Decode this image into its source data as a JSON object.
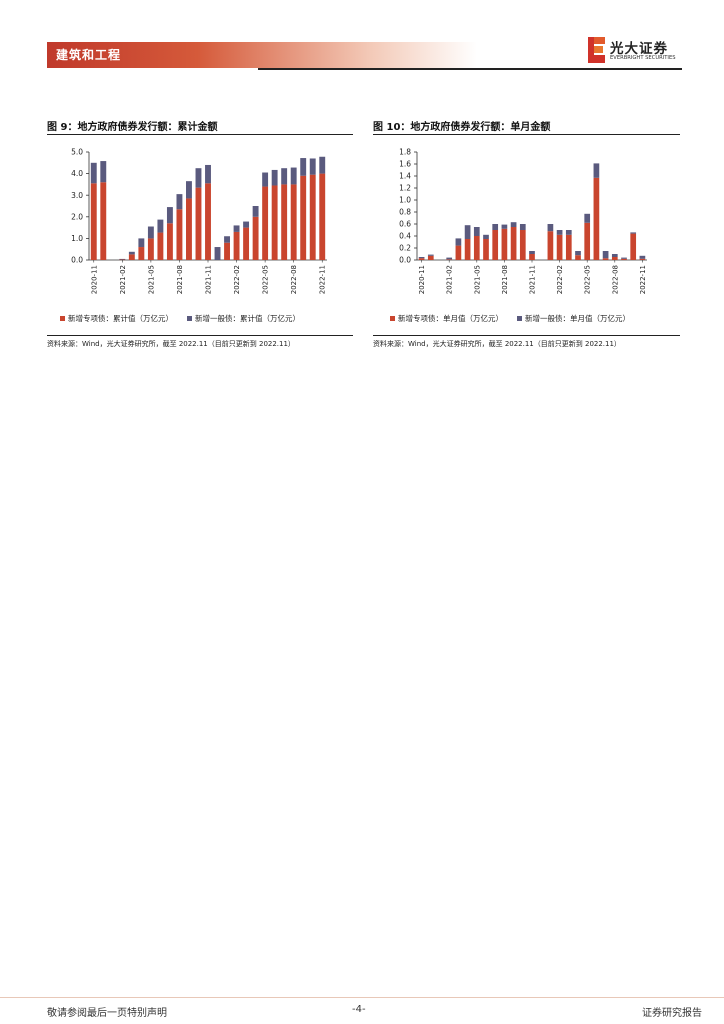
{
  "header": {
    "section": "建筑和工程",
    "brand_cn": "光大证券",
    "brand_en": "EVERBRIGHT SECURITIES"
  },
  "colors": {
    "special_bond": "#c9452e",
    "general_bond": "#5a5a7e",
    "accent": "#c0392b"
  },
  "figures": [
    {
      "title": "图 9：地方政府债券发行额：累计金额",
      "legend": [
        "新增专项债：累计值（万亿元）",
        "新增一般债：累计值（万亿元）"
      ],
      "source": "资料来源：Wind，光大证券研究所，截至 2022.11（目前只更新到 2022.11）"
    },
    {
      "title": "图 10：地方政府债券发行额：单月金额",
      "legend": [
        "新增专项债：单月值（万亿元）",
        "新增一般债：单月值（万亿元）"
      ],
      "source": "资料来源：Wind，光大证券研究所，截至 2022.11（目前只更新到 2022.11）"
    }
  ],
  "chart_data": [
    {
      "type": "bar",
      "stacked": true,
      "title": "图 9：地方政府债券发行额：累计金额",
      "ylim": [
        0,
        5
      ],
      "yticks": [
        "0.0",
        "1.0",
        "2.0",
        "3.0",
        "4.0",
        "5.0"
      ],
      "ytick_values": [
        0,
        1,
        2,
        3,
        4,
        5
      ],
      "categories": [
        "2020-11",
        "2020-12",
        "2021-01",
        "2021-02",
        "2021-03",
        "2021-04",
        "2021-05",
        "2021-06",
        "2021-07",
        "2021-08",
        "2021-09",
        "2021-10",
        "2021-11",
        "2021-12",
        "2022-01",
        "2022-02",
        "2022-03",
        "2022-04",
        "2022-05",
        "2022-06",
        "2022-07",
        "2022-08",
        "2022-09",
        "2022-10",
        "2022-11"
      ],
      "xtick_labels": [
        "2020-11",
        "2021-02",
        "2021-05",
        "2021-08",
        "2021-11",
        "2022-02",
        "2022-05",
        "2022-08",
        "2022-11"
      ],
      "xtick_indices": [
        0,
        3,
        6,
        9,
        12,
        15,
        18,
        21,
        24
      ],
      "series": [
        {
          "name": "新增专项债：累计值（万亿元）",
          "color": "#c9452e",
          "values": [
            3.55,
            3.6,
            0,
            0.02,
            0.26,
            0.6,
            1.0,
            1.27,
            1.7,
            2.35,
            2.85,
            3.35,
            3.55,
            0,
            0.8,
            1.3,
            1.5,
            2.0,
            3.4,
            3.45,
            3.5,
            3.5,
            3.9,
            3.95,
            4.0
          ]
        },
        {
          "name": "新增一般债：累计值（万亿元）",
          "color": "#5a5a7e",
          "values": [
            0.95,
            0.98,
            0,
            0.03,
            0.12,
            0.4,
            0.55,
            0.6,
            0.75,
            0.7,
            0.8,
            0.9,
            0.85,
            0.6,
            0.3,
            0.3,
            0.28,
            0.5,
            0.65,
            0.72,
            0.75,
            0.78,
            0.82,
            0.75,
            0.78
          ]
        }
      ]
    },
    {
      "type": "bar",
      "stacked": true,
      "title": "图 10：地方政府债券发行额：单月金额",
      "ylim": [
        0,
        1.8
      ],
      "yticks": [
        "0.0",
        "0.2",
        "0.4",
        "0.6",
        "0.8",
        "1.0",
        "1.2",
        "1.4",
        "1.6",
        "1.8"
      ],
      "ytick_values": [
        0,
        0.2,
        0.4,
        0.6,
        0.8,
        1.0,
        1.2,
        1.4,
        1.6,
        1.8
      ],
      "categories": [
        "2020-11",
        "2020-12",
        "2021-01",
        "2021-02",
        "2021-03",
        "2021-04",
        "2021-05",
        "2021-06",
        "2021-07",
        "2021-08",
        "2021-09",
        "2021-10",
        "2021-11",
        "2021-12",
        "2022-01",
        "2022-02",
        "2022-03",
        "2022-04",
        "2022-05",
        "2022-06",
        "2022-07",
        "2022-08",
        "2022-09",
        "2022-10",
        "2022-11"
      ],
      "xtick_labels": [
        "2020-11",
        "2021-02",
        "2021-05",
        "2021-08",
        "2021-11",
        "2022-02",
        "2022-05",
        "2022-08",
        "2022-11"
      ],
      "xtick_indices": [
        0,
        3,
        6,
        9,
        12,
        15,
        18,
        21,
        24
      ],
      "series": [
        {
          "name": "新增专项债：单月值（万亿元）",
          "color": "#c9452e",
          "values": [
            0.03,
            0.07,
            0,
            0.01,
            0.24,
            0.35,
            0.4,
            0.35,
            0.5,
            0.52,
            0.55,
            0.5,
            0.1,
            0,
            0.48,
            0.42,
            0.42,
            0.08,
            0.62,
            1.37,
            0.03,
            0.05,
            0.02,
            0.44,
            0.02
          ]
        },
        {
          "name": "新增一般债：单月值（万亿元）",
          "color": "#5a5a7e",
          "values": [
            0.02,
            0.02,
            0,
            0.03,
            0.12,
            0.23,
            0.15,
            0.07,
            0.1,
            0.07,
            0.08,
            0.1,
            0.05,
            0,
            0.12,
            0.08,
            0.08,
            0.07,
            0.15,
            0.24,
            0.12,
            0.05,
            0.02,
            0.02,
            0.05
          ]
        }
      ]
    }
  ],
  "footer": {
    "disclaimer": "敬请参阅最后一页特别声明",
    "page": "-4-",
    "doc_type": "证券研究报告"
  }
}
